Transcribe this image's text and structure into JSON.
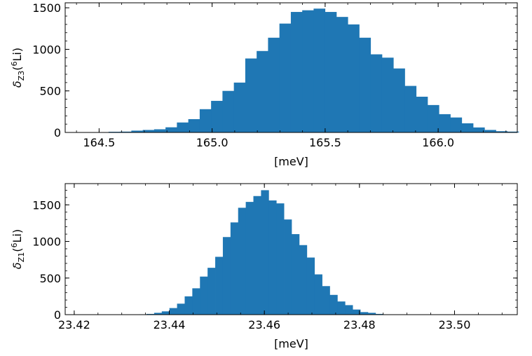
{
  "chart_data": [
    {
      "type": "bar",
      "title": "",
      "xlabel": "[meV]",
      "ylabel_main": "δ",
      "ylabel_sub": "Z3",
      "ylabel_sup": "6",
      "ylabel_tail_open": "(",
      "ylabel_tail_close": "Li)",
      "color": "#1f77b4",
      "bin_start": 164.441,
      "bin_width": 0.0504,
      "counts": [
        2,
        4,
        8,
        10,
        22,
        30,
        38,
        62,
        120,
        160,
        280,
        380,
        500,
        600,
        890,
        980,
        1140,
        1310,
        1450,
        1470,
        1490,
        1450,
        1390,
        1300,
        1140,
        940,
        900,
        770,
        560,
        430,
        330,
        220,
        180,
        110,
        60,
        30,
        15,
        10
      ],
      "xlim": [
        164.35,
        166.35
      ],
      "ylim": [
        0,
        1560
      ],
      "xticks": [
        164.5,
        165.0,
        165.5,
        166.0
      ],
      "xtick_labels": [
        "164.5",
        "165.0",
        "165.5",
        "166.0"
      ],
      "yticks": [
        0,
        500,
        1000,
        1500
      ],
      "ytick_labels": [
        "0",
        "500",
        "1000",
        "1500"
      ]
    },
    {
      "type": "bar",
      "title": "",
      "xlabel": "[meV]",
      "ylabel_main": "δ",
      "ylabel_sub": "Z1",
      "ylabel_sup": "6",
      "ylabel_tail_open": "(",
      "ylabel_tail_close": "Li)",
      "color": "#1f77b4",
      "bin_start": 23.4336,
      "bin_width": 0.001606,
      "counts": [
        5,
        10,
        25,
        45,
        90,
        150,
        250,
        360,
        520,
        640,
        790,
        1060,
        1260,
        1460,
        1540,
        1620,
        1700,
        1560,
        1520,
        1300,
        1100,
        950,
        780,
        550,
        390,
        270,
        180,
        130,
        70,
        35,
        25,
        10
      ],
      "xlim": [
        23.4181,
        23.5132
      ],
      "ylim": [
        0,
        1790
      ],
      "xticks": [
        23.42,
        23.44,
        23.46,
        23.48,
        23.5
      ],
      "xtick_labels": [
        "23.42",
        "23.44",
        "23.46",
        "23.48",
        "23.50"
      ],
      "yticks": [
        0,
        500,
        1000,
        1500
      ],
      "ytick_labels": [
        "0",
        "500",
        "1000",
        "1500"
      ]
    }
  ]
}
